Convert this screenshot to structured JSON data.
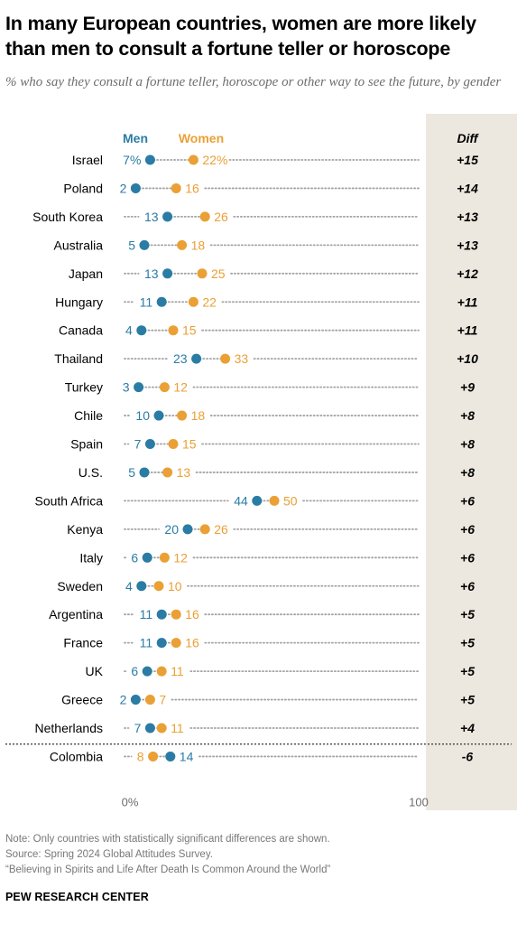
{
  "title": "In many European countries, women are more likely than men to consult a fortune teller or horoscope",
  "subtitle": "% who say they consult a fortune teller, horoscope or other way to see the future, by gender",
  "notes": {
    "note": "Note: Only countries with statistically significant differences are shown.",
    "source": "Source: Spring 2024 Global Attitudes Survey.",
    "report": "“Believing in Spirits and Life After Death Is Common Around the World”"
  },
  "org": "PEW RESEARCH CENTER",
  "colors": {
    "men": "#2a7ca5",
    "women": "#eaa035",
    "diff_panel": "#ece8df",
    "dots": "#a3a3a3"
  },
  "chart_data": {
    "type": "dot-plot",
    "xlim": [
      0,
      100
    ],
    "x_ticks": [
      {
        "value": 0,
        "label": "0%"
      },
      {
        "value": 100,
        "label": "100"
      }
    ],
    "diff_header": "Diff",
    "series": [
      {
        "name": "Men",
        "key": "men"
      },
      {
        "name": "Women",
        "key": "women"
      }
    ],
    "rows": [
      {
        "country": "Israel",
        "men": 7,
        "women": 22,
        "men_label": "7%",
        "women_label": "22%",
        "diff": "+15"
      },
      {
        "country": "Poland",
        "men": 2,
        "women": 16,
        "men_label": "2",
        "women_label": "16",
        "diff": "+14"
      },
      {
        "country": "South Korea",
        "men": 13,
        "women": 26,
        "men_label": "13",
        "women_label": "26",
        "diff": "+13"
      },
      {
        "country": "Australia",
        "men": 5,
        "women": 18,
        "men_label": "5",
        "women_label": "18",
        "diff": "+13"
      },
      {
        "country": "Japan",
        "men": 13,
        "women": 25,
        "men_label": "13",
        "women_label": "25",
        "diff": "+12"
      },
      {
        "country": "Hungary",
        "men": 11,
        "women": 22,
        "men_label": "11",
        "women_label": "22",
        "diff": "+11"
      },
      {
        "country": "Canada",
        "men": 4,
        "women": 15,
        "men_label": "4",
        "women_label": "15",
        "diff": "+11"
      },
      {
        "country": "Thailand",
        "men": 23,
        "women": 33,
        "men_label": "23",
        "women_label": "33",
        "diff": "+10"
      },
      {
        "country": "Turkey",
        "men": 3,
        "women": 12,
        "men_label": "3",
        "women_label": "12",
        "diff": "+9"
      },
      {
        "country": "Chile",
        "men": 10,
        "women": 18,
        "men_label": "10",
        "women_label": "18",
        "diff": "+8"
      },
      {
        "country": "Spain",
        "men": 7,
        "women": 15,
        "men_label": "7",
        "women_label": "15",
        "diff": "+8"
      },
      {
        "country": "U.S.",
        "men": 5,
        "women": 13,
        "men_label": "5",
        "women_label": "13",
        "diff": "+8"
      },
      {
        "country": "South Africa",
        "men": 44,
        "women": 50,
        "men_label": "44",
        "women_label": "50",
        "diff": "+6"
      },
      {
        "country": "Kenya",
        "men": 20,
        "women": 26,
        "men_label": "20",
        "women_label": "26",
        "diff": "+6"
      },
      {
        "country": "Italy",
        "men": 6,
        "women": 12,
        "men_label": "6",
        "women_label": "12",
        "diff": "+6"
      },
      {
        "country": "Sweden",
        "men": 4,
        "women": 10,
        "men_label": "4",
        "women_label": "10",
        "diff": "+6"
      },
      {
        "country": "Argentina",
        "men": 11,
        "women": 16,
        "men_label": "11",
        "women_label": "16",
        "diff": "+5"
      },
      {
        "country": "France",
        "men": 11,
        "women": 16,
        "men_label": "11",
        "women_label": "16",
        "diff": "+5"
      },
      {
        "country": "UK",
        "men": 6,
        "women": 11,
        "men_label": "6",
        "women_label": "11",
        "diff": "+5"
      },
      {
        "country": "Greece",
        "men": 2,
        "women": 7,
        "men_label": "2",
        "women_label": "7",
        "diff": "+5"
      },
      {
        "country": "Netherlands",
        "men": 7,
        "women": 11,
        "men_label": "7",
        "women_label": "11",
        "diff": "+4"
      },
      {
        "country": "Colombia",
        "men": 14,
        "women": 8,
        "men_label": "14",
        "women_label": "8",
        "diff": "-6"
      }
    ]
  }
}
